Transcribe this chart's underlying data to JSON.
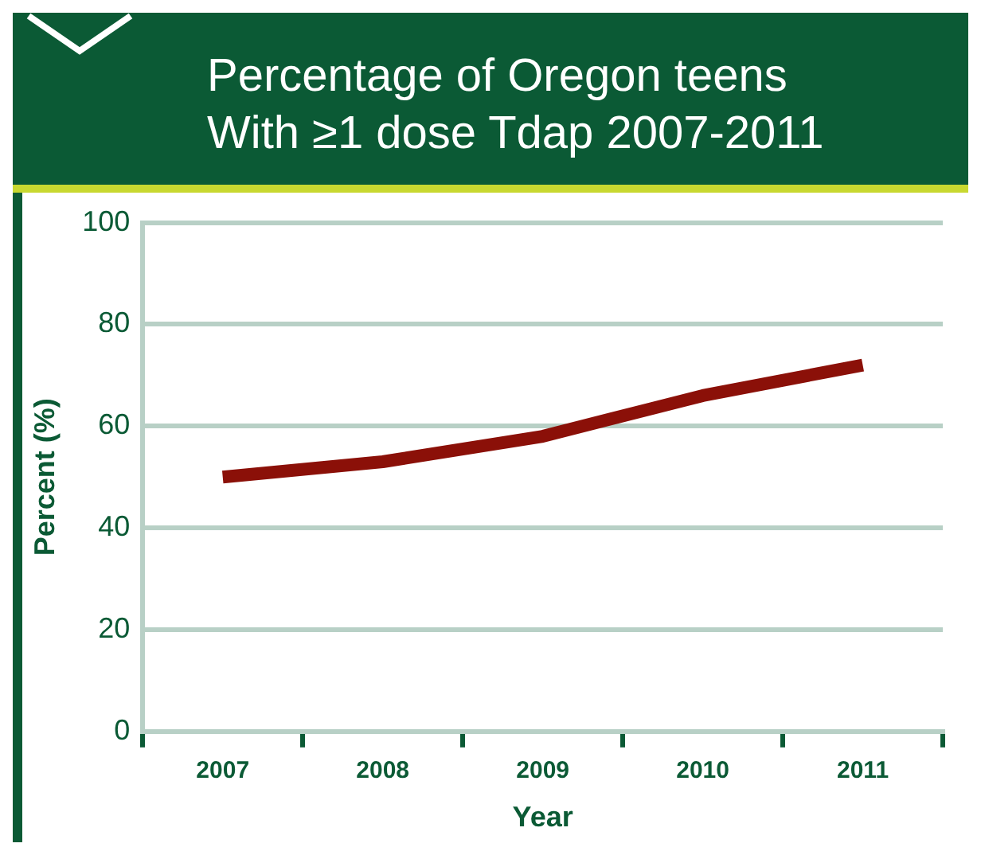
{
  "chart_data": {
    "type": "line",
    "title": "Percentage of Oregon teens With ≥1 dose Tdap 2007-2011",
    "xlabel": "Year",
    "ylabel": "Percent (%)",
    "categories": [
      "2007",
      "2008",
      "2009",
      "2010",
      "2011"
    ],
    "series": [
      {
        "color": "#8b1008",
        "values": [
          50,
          53,
          58,
          66,
          72
        ]
      }
    ],
    "ylim": [
      0,
      100
    ],
    "yticks": [
      0,
      20,
      40,
      60,
      80,
      100
    ],
    "grid": "y",
    "legend": false,
    "marker": "none",
    "line_style": "solid"
  }
}
